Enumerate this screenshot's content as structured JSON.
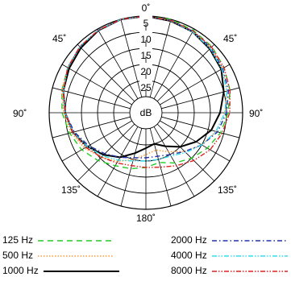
{
  "chart_data": {
    "type": "polar",
    "angle_labels": [
      "0˚",
      "45˚",
      "45˚",
      "90˚",
      "90˚",
      "135˚",
      "135˚",
      "180˚"
    ],
    "radial_unit": "dB",
    "radial_ticks": [
      "5",
      "10",
      "15",
      "20",
      "25"
    ],
    "radial_range_db": [
      -30,
      0
    ],
    "grid": true,
    "legend_position": "bottom",
    "series": [
      {
        "name": "125 Hz",
        "color": "#22cc22",
        "dash": "dashed",
        "angles_deg": [
          0,
          15,
          30,
          45,
          60,
          75,
          90,
          105,
          120,
          135,
          150,
          165,
          180,
          195,
          210,
          225,
          240,
          255,
          270,
          285,
          300,
          315,
          330,
          345
        ],
        "db": [
          0,
          0,
          -0.5,
          -1,
          -2,
          -3,
          -4.5,
          -6,
          -8,
          -10,
          -12,
          -14,
          -13,
          -12,
          -11,
          -9,
          -7,
          -5.5,
          -4,
          -3,
          -2,
          -1,
          -0.5,
          0
        ]
      },
      {
        "name": "500 Hz",
        "color": "#ff9933",
        "dash": "dotted",
        "angles_deg": [
          0,
          15,
          30,
          45,
          60,
          75,
          90,
          105,
          120,
          135,
          150,
          165,
          180,
          195,
          210,
          225,
          240,
          255,
          270,
          285,
          300,
          315,
          330,
          345
        ],
        "db": [
          0,
          -0.3,
          -0.8,
          -1.5,
          -2.5,
          -4,
          -5.5,
          -7.5,
          -10,
          -13,
          -16,
          -18,
          -17,
          -15,
          -12.5,
          -10.5,
          -8,
          -6,
          -4.5,
          -3,
          -2,
          -1,
          -0.5,
          0
        ]
      },
      {
        "name": "1000 Hz",
        "color": "#000000",
        "dash": "solid",
        "angles_deg": [
          0,
          15,
          30,
          45,
          60,
          75,
          90,
          105,
          120,
          135,
          150,
          165,
          180,
          195,
          210,
          225,
          240,
          255,
          270,
          285,
          300,
          315,
          330,
          345
        ],
        "db": [
          0,
          -0.5,
          -1,
          -2,
          -3,
          -5,
          -7,
          -9,
          -12,
          -15,
          -18,
          -20,
          -19,
          -17,
          -14,
          -11.5,
          -9,
          -6.5,
          -5,
          -3.5,
          -2.5,
          -1.5,
          -0.5,
          0
        ]
      },
      {
        "name": "2000 Hz",
        "color": "#2233aa",
        "dash": "dashdot",
        "angles_deg": [
          0,
          15,
          30,
          45,
          60,
          75,
          90,
          105,
          120,
          135,
          150,
          165,
          180,
          195,
          210,
          225,
          240,
          255,
          270,
          285,
          300,
          315,
          330,
          345
        ],
        "db": [
          0,
          -0.3,
          -0.8,
          -1.5,
          -2.5,
          -3.5,
          -5,
          -7,
          -10,
          -13,
          -15,
          -16,
          -16,
          -15.5,
          -14,
          -12,
          -9.5,
          -7,
          -5,
          -3.5,
          -2,
          -1,
          -0.4,
          0
        ]
      },
      {
        "name": "4000 Hz",
        "color": "#33ddee",
        "dash": "dashdotdot",
        "angles_deg": [
          0,
          15,
          30,
          45,
          60,
          75,
          90,
          105,
          120,
          135,
          150,
          165,
          180,
          195,
          210,
          225,
          240,
          255,
          270,
          285,
          300,
          315,
          330,
          345
        ],
        "db": [
          0,
          -0.4,
          -1,
          -1.8,
          -2.8,
          -4,
          -5.5,
          -7.5,
          -10,
          -12.5,
          -14.5,
          -15,
          -15,
          -14.5,
          -13,
          -11,
          -9,
          -6.5,
          -5,
          -3.5,
          -2,
          -1,
          -0.4,
          0
        ]
      },
      {
        "name": "8000 Hz",
        "color": "#dd2222",
        "dash": "dashdotdot",
        "angles_deg": [
          0,
          15,
          30,
          45,
          60,
          75,
          90,
          105,
          120,
          135,
          150,
          165,
          180,
          195,
          210,
          225,
          240,
          255,
          270,
          285,
          300,
          315,
          330,
          345
        ],
        "db": [
          0,
          -0.3,
          -0.7,
          -1.2,
          -2,
          -3,
          -4,
          -5.5,
          -7,
          -9,
          -11,
          -12.5,
          -13,
          -13,
          -12,
          -10.5,
          -8.5,
          -6.5,
          -5,
          -3.5,
          -2,
          -1,
          -0.4,
          0
        ]
      }
    ]
  }
}
